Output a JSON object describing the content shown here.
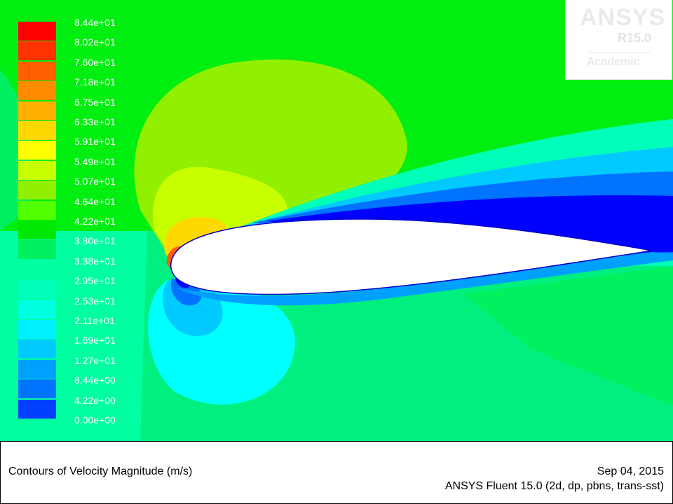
{
  "colors": {
    "bands": [
      "#0000ff",
      "#0040ff",
      "#0073ff",
      "#00a0ff",
      "#00caff",
      "#00f0ff",
      "#00ffe0",
      "#00ffb8",
      "#00ffa0",
      "#00f060",
      "#00e800",
      "#50ff00",
      "#90f000",
      "#c8ff00",
      "#ffff00",
      "#ffd800",
      "#ffb000",
      "#ff8c00",
      "#ff6000",
      "#ff3300",
      "#ff0000"
    ],
    "airfoil": "#ffffff"
  },
  "legend": {
    "labels": [
      "8.44e+01",
      "8.02e+01",
      "7.60e+01",
      "7.18e+01",
      "6.75e+01",
      "6.33e+01",
      "5.91e+01",
      "5.49e+01",
      "5.07e+01",
      "4.64e+01",
      "4.22e+01",
      "3.80e+01",
      "3.38e+01",
      "2.95e+01",
      "2.53e+01",
      "2.11e+01",
      "1.69e+01",
      "1.27e+01",
      "8.44e+00",
      "4.22e+00",
      "0.00e+00"
    ]
  },
  "logo": {
    "brand": "ANSYS",
    "version": "R15.0",
    "edition": "Academic"
  },
  "titlebar": {
    "title": "Contours of Velocity Magnitude (m/s)",
    "date": "Sep 04, 2015",
    "solver": "ANSYS Fluent 15.0 (2d, dp, pbns, trans-sst)"
  }
}
